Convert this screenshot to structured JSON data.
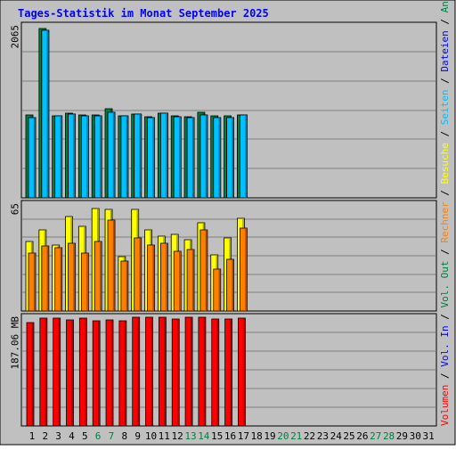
{
  "chart_data": {
    "type": "bar",
    "title": "Tages-Statistik im Monat September 2025",
    "categories": [
      "1",
      "2",
      "3",
      "4",
      "5",
      "6",
      "7",
      "8",
      "9",
      "10",
      "11",
      "12",
      "13",
      "14",
      "15",
      "16",
      "17",
      "18",
      "19",
      "20",
      "21",
      "22",
      "23",
      "24",
      "25",
      "26",
      "27",
      "28",
      "29",
      "30",
      "31"
    ],
    "weekend_days": [
      "6",
      "7",
      "13",
      "14",
      "20",
      "21",
      "27",
      "28"
    ],
    "right_legend": [
      {
        "label": "Volumen",
        "color": "#ff0000"
      },
      {
        "label": "Vol. In",
        "color": "#0000ff"
      },
      {
        "label": "Vol. Out",
        "color": "#008040"
      },
      {
        "label": "Rechner",
        "color": "#ff8000"
      },
      {
        "label": "Besuche",
        "color": "#ffff00"
      },
      {
        "label": "Seiten",
        "color": "#00c0ff"
      },
      {
        "label": "Dateien",
        "color": "#0000ff"
      },
      {
        "label": "Anfragen",
        "color": "#008040"
      }
    ],
    "panels": [
      {
        "id": "hits",
        "max_label": "2065",
        "max": 2065,
        "series": [
          {
            "name": "Anfragen",
            "color": "#008040",
            "values": [
              990,
              2020,
              975,
              1015,
              985,
              990,
              1060,
              980,
              1005,
              965,
              1010,
              980,
              970,
              1025,
              975,
              975,
              985,
              null,
              null,
              null,
              null,
              null,
              null,
              null,
              null,
              null,
              null,
              null,
              null,
              null,
              null
            ]
          },
          {
            "name": "Dateien",
            "color": "#0000ff",
            "values": [
              960,
              2000,
              975,
              1005,
              975,
              975,
              1020,
              975,
              1000,
              960,
              1010,
              970,
              960,
              995,
              960,
              960,
              985,
              null,
              null,
              null,
              null,
              null,
              null,
              null,
              null,
              null,
              null,
              null,
              null,
              null,
              null
            ]
          },
          {
            "name": "Seiten",
            "color": "#00c0ff",
            "values": [
              960,
              2000,
              975,
              1005,
              975,
              975,
              1020,
              975,
              1000,
              960,
              1010,
              970,
              960,
              995,
              960,
              960,
              985,
              null,
              null,
              null,
              null,
              null,
              null,
              null,
              null,
              null,
              null,
              null,
              null,
              null,
              null
            ]
          }
        ]
      },
      {
        "id": "visits",
        "max_label": "65",
        "max": 65,
        "series": [
          {
            "name": "Besuche",
            "color": "#ffff00",
            "values": [
              42,
              49,
              40,
              57,
              51,
              62,
              61,
              33,
              61,
              49,
              45,
              46,
              43,
              53,
              34,
              44,
              56,
              null,
              null,
              null,
              null,
              null,
              null,
              null,
              null,
              null,
              null,
              null,
              null,
              null,
              null
            ]
          },
          {
            "name": "Rechner",
            "color": "#ff8000",
            "values": [
              35,
              39,
              38,
              41,
              35,
              42,
              55,
              30,
              44,
              40,
              41,
              36,
              37,
              49,
              25,
              31,
              50,
              null,
              null,
              null,
              null,
              null,
              null,
              null,
              null,
              null,
              null,
              null,
              null,
              null,
              null
            ]
          }
        ]
      },
      {
        "id": "volume",
        "max_label": "187.06 MB",
        "max": 187.06,
        "series": [
          {
            "name": "Volumen",
            "color": "#ff0000",
            "values": [
              177,
              184,
              184,
              181,
              184,
              180,
              181,
              180,
              186,
              185,
              186,
              183,
              186,
              185,
              182,
              182,
              184,
              null,
              null,
              null,
              null,
              null,
              null,
              null,
              null,
              null,
              null,
              null,
              null,
              null,
              null
            ]
          }
        ]
      }
    ]
  }
}
